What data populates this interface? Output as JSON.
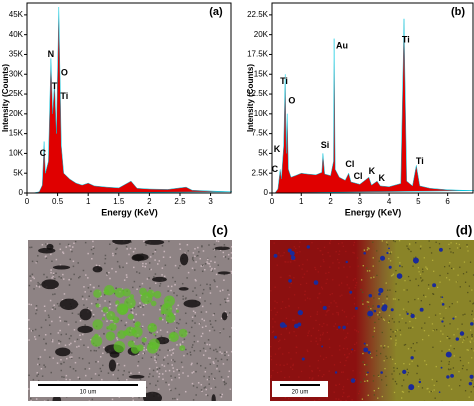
{
  "chart_data": [
    {
      "type": "area",
      "label": "(a)",
      "x_label": "Energy (KeV)",
      "y_label": "Intensity (Counts)",
      "color": "#e00000",
      "x": [
        0,
        0.1,
        0.2,
        0.25,
        0.28,
        0.3,
        0.35,
        0.39,
        0.42,
        0.45,
        0.48,
        0.52,
        0.56,
        0.6,
        0.7,
        0.8,
        0.9,
        1.0,
        1.1,
        1.3,
        1.5,
        1.7,
        1.8,
        2.0,
        2.3,
        2.6,
        2.7,
        3.0,
        3.35
      ],
      "values": [
        0,
        0,
        300,
        2000,
        13000,
        5000,
        8000,
        34000,
        20000,
        28000,
        15000,
        47000,
        12000,
        5000,
        3500,
        2500,
        2000,
        2500,
        1800,
        1500,
        1300,
        3000,
        1200,
        1000,
        900,
        1500,
        700,
        500,
        300
      ],
      "xlim": [
        0,
        3.35
      ],
      "ylim": [
        0,
        48000
      ],
      "xticks": [
        0,
        0.5,
        1,
        1.5,
        2,
        2.5,
        3
      ],
      "yticks": [
        0,
        {
          "value": 5000,
          "label": "5K"
        },
        {
          "value": 10000,
          "label": "10K"
        },
        {
          "value": 15000,
          "label": "15K"
        },
        {
          "value": 20000,
          "label": "20K"
        },
        {
          "value": 25000,
          "label": "25K"
        },
        {
          "value": 30000,
          "label": "30K"
        },
        {
          "value": 35000,
          "label": "35K"
        },
        {
          "value": 40000,
          "label": "40K"
        },
        {
          "value": 45000,
          "label": "45K"
        }
      ],
      "annotations": [
        {
          "text": "N",
          "x": 0.39,
          "y": 35000
        },
        {
          "text": "T",
          "x": 0.45,
          "y": 26900
        },
        {
          "text": "O",
          "x": 0.61,
          "y": 30300
        },
        {
          "text": "Ti",
          "x": 0.61,
          "y": 24400
        },
        {
          "text": "C",
          "x": 0.26,
          "y": 9900
        }
      ]
    },
    {
      "type": "area",
      "label": "(b)",
      "x_label": "Energy (KeV)",
      "y_label": "Intensity (Counts)",
      "color": "#e00000",
      "x": [
        0,
        0.1,
        0.2,
        0.28,
        0.32,
        0.4,
        0.45,
        0.49,
        0.52,
        0.56,
        0.65,
        0.8,
        1.0,
        1.2,
        1.5,
        1.7,
        1.74,
        1.8,
        2.0,
        2.1,
        2.12,
        2.16,
        2.3,
        2.5,
        2.62,
        2.7,
        3.0,
        3.31,
        3.4,
        3.59,
        3.7,
        4.0,
        4.4,
        4.51,
        4.6,
        4.8,
        4.93,
        5.05,
        5.4,
        6.0,
        6.9
      ],
      "values": [
        0,
        0,
        500,
        3000,
        1800,
        6000,
        15000,
        5000,
        10000,
        3000,
        2000,
        2200,
        2500,
        2400,
        2300,
        2600,
        5000,
        2400,
        2200,
        4000,
        19500,
        3000,
        2000,
        1600,
        2500,
        1400,
        1100,
        2000,
        1000,
        1500,
        900,
        800,
        1200,
        22000,
        1500,
        900,
        3500,
        900,
        600,
        400,
        300
      ],
      "xlim": [
        0,
        6.9
      ],
      "ylim": [
        0,
        24000
      ],
      "xticks": [
        0,
        1,
        2,
        3,
        4,
        5,
        6
      ],
      "yticks": [
        0,
        {
          "value": 2500,
          "label": "2.5K"
        },
        {
          "value": 5000,
          "label": "5K"
        },
        {
          "value": 7500,
          "label": "7.5K"
        },
        {
          "value": 10000,
          "label": "10K"
        },
        {
          "value": 12500,
          "label": "12.5K"
        },
        {
          "value": 15000,
          "label": "15K"
        },
        {
          "value": 17500,
          "label": "17.5K"
        },
        {
          "value": 20000,
          "label": "20K"
        },
        {
          "value": 22500,
          "label": "22.5K"
        }
      ],
      "annotations": [
        {
          "text": "C",
          "x": 0.1,
          "y": 2940
        },
        {
          "text": "K",
          "x": 0.17,
          "y": 5500
        },
        {
          "text": "Ti",
          "x": 0.41,
          "y": 14060
        },
        {
          "text": "O",
          "x": 0.68,
          "y": 11630
        },
        {
          "text": "Si",
          "x": 1.81,
          "y": 6000
        },
        {
          "text": "Au",
          "x": 2.39,
          "y": 18540
        },
        {
          "text": "Cl",
          "x": 2.66,
          "y": 3580
        },
        {
          "text": "Cl",
          "x": 2.94,
          "y": 2045
        },
        {
          "text": "K",
          "x": 3.41,
          "y": 2685
        },
        {
          "text": "K",
          "x": 3.75,
          "y": 1790
        },
        {
          "text": "Ti",
          "x": 4.57,
          "y": 19300
        },
        {
          "text": "Ti",
          "x": 5.05,
          "y": 3960
        }
      ]
    }
  ],
  "images": [
    {
      "label": "(c)",
      "scale_bar": "10 um"
    },
    {
      "label": "(d)",
      "scale_bar": "20 um"
    }
  ]
}
